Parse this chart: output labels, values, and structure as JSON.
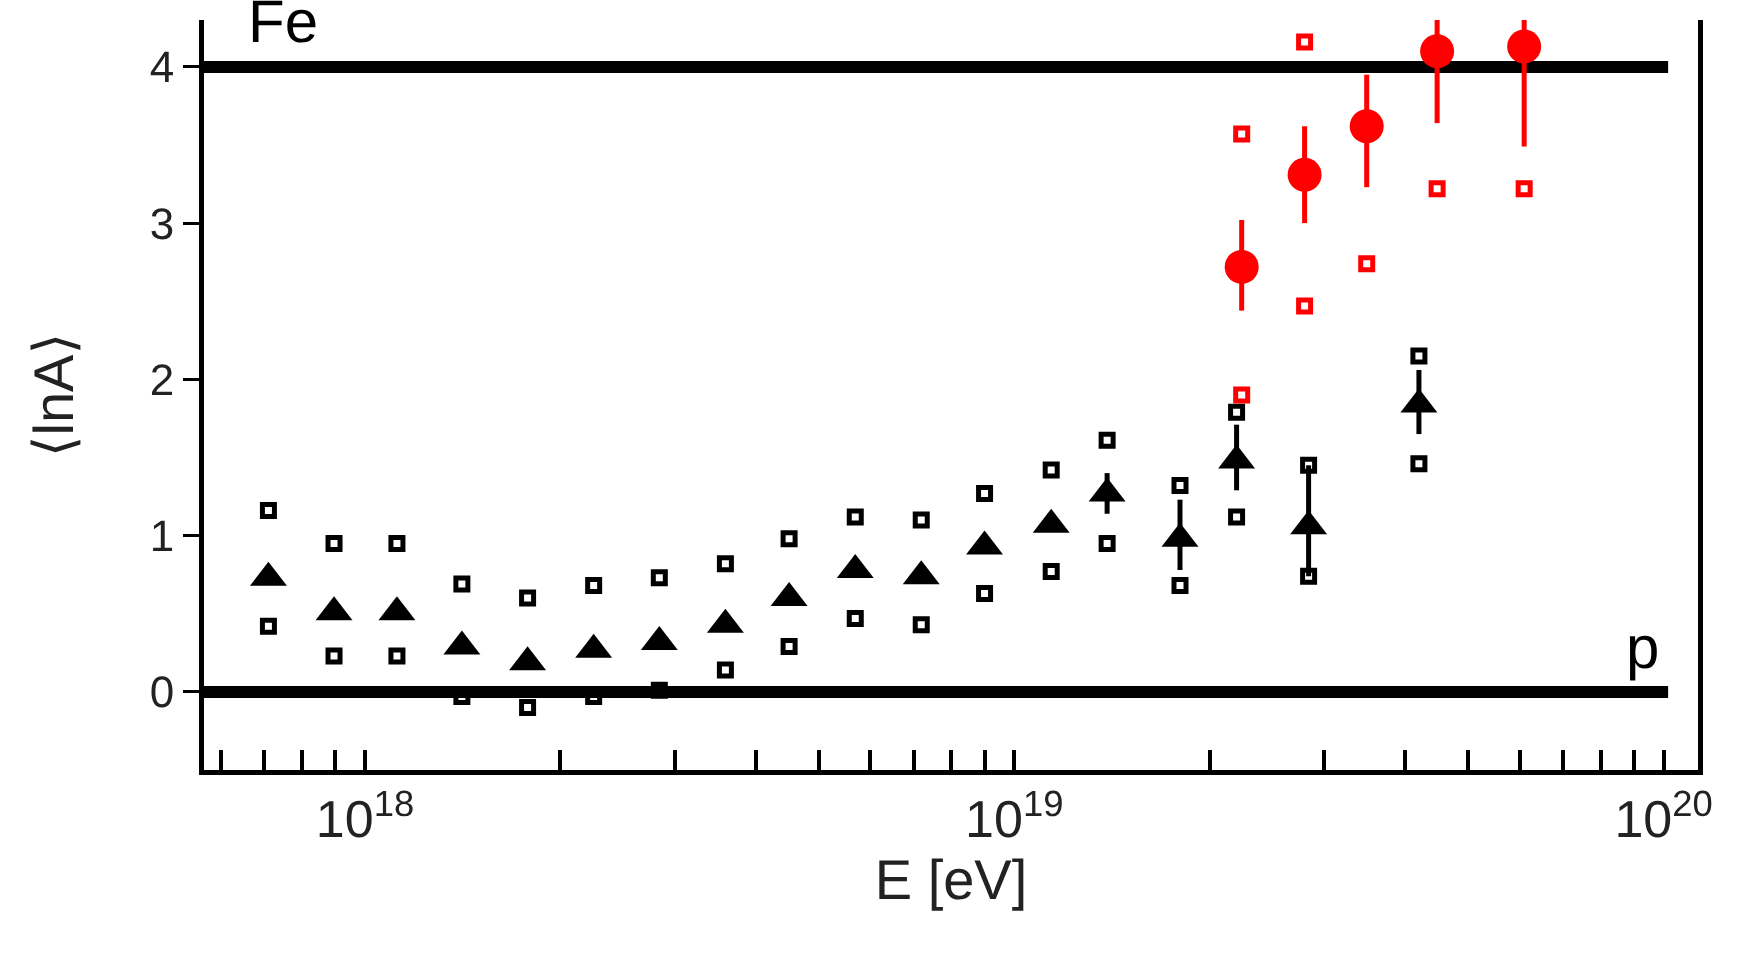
{
  "chart_data": {
    "type": "scatter",
    "xlabel": "E [eV]",
    "ylabel": "⟨lnA⟩",
    "log": "x",
    "grid": false,
    "xlim": [
      5.65e+17,
      1.13e+20
    ],
    "ylim": [
      -0.5,
      4.3
    ],
    "xticks": [
      {
        "value": 6e+17,
        "label": null
      },
      {
        "value": 7e+17,
        "label": null
      },
      {
        "value": 8e+17,
        "label": null
      },
      {
        "value": 9e+17,
        "label": null
      },
      {
        "value": 1e+18,
        "label": "10$^{18}$"
      },
      {
        "value": 2e+18,
        "label": null
      },
      {
        "value": 3e+18,
        "label": null
      },
      {
        "value": 4e+18,
        "label": null
      },
      {
        "value": 5e+18,
        "label": null
      },
      {
        "value": 6e+18,
        "label": null
      },
      {
        "value": 7e+18,
        "label": null
      },
      {
        "value": 8e+18,
        "label": null
      },
      {
        "value": 9e+18,
        "label": null
      },
      {
        "value": 1e+19,
        "label": "10$^{19}$"
      },
      {
        "value": 2e+19,
        "label": null
      },
      {
        "value": 3e+19,
        "label": null
      },
      {
        "value": 4e+19,
        "label": null
      },
      {
        "value": 5e+19,
        "label": null
      },
      {
        "value": 6e+19,
        "label": null
      },
      {
        "value": 7e+19,
        "label": null
      },
      {
        "value": 8e+19,
        "label": null
      },
      {
        "value": 9e+19,
        "label": null
      },
      {
        "value": 1e+20,
        "label": "10$^{20}$"
      }
    ],
    "yticks": [
      0,
      1,
      2,
      3,
      4
    ],
    "ref_lines": [
      {
        "axis": "y",
        "value": 0,
        "color": "#000000"
      },
      {
        "axis": "y",
        "value": 4,
        "color": "#000000"
      }
    ],
    "annotations": [
      {
        "text": "p",
        "x": 9.3e+19,
        "y": 0
      },
      {
        "text": "Fe",
        "x": 7.5e+17,
        "y": 4
      }
    ],
    "series": [
      {
        "marker": "triangle",
        "color": "#000000",
        "x": [
          7.1e+17,
          8.96e+17,
          1.12e+18,
          1.41e+18,
          1.78e+18,
          2.25e+18,
          2.84e+18,
          3.59e+18,
          4.5e+18,
          5.69e+18,
          7.19e+18,
          9e+18,
          1.14e+19,
          1.39e+19,
          1.8e+19,
          2.2e+19,
          2.84e+19,
          4.2e+19
        ],
        "values": [
          0.73,
          0.51,
          0.51,
          0.29,
          0.19,
          0.27,
          0.32,
          0.43,
          0.6,
          0.78,
          0.74,
          0.93,
          1.07,
          1.27,
          0.98,
          1.48,
          1.06,
          1.84
        ],
        "errors": [
          null,
          null,
          null,
          null,
          null,
          null,
          null,
          null,
          null,
          null,
          null,
          null,
          null,
          0.13,
          [
            0.78,
            1.23
          ],
          [
            1.29,
            1.71
          ],
          [
            0.74,
            1.45
          ],
          [
            1.65,
            2.06
          ]
        ]
      },
      {
        "marker": "square",
        "color": "#000000",
        "x": [
          7.1e+17,
          8.96e+17,
          1.12e+18,
          1.41e+18,
          1.78e+18,
          2.25e+18,
          2.84e+18,
          3.59e+18,
          4.5e+18,
          5.69e+18,
          7.19e+18,
          9e+18,
          1.14e+19,
          1.39e+19,
          1.8e+19,
          2.2e+19,
          2.84e+19,
          4.2e+19
        ],
        "values": [
          1.16,
          0.95,
          0.95,
          0.69,
          0.6,
          0.68,
          0.73,
          0.82,
          0.98,
          1.12,
          1.1,
          1.27,
          1.42,
          1.61,
          1.32,
          1.79,
          1.45,
          2.15
        ]
      },
      {
        "marker": "square",
        "color": "#000000",
        "x": [
          7.1e+17,
          8.96e+17,
          1.12e+18,
          1.41e+18,
          1.78e+18,
          2.25e+18,
          2.84e+18,
          3.59e+18,
          4.5e+18,
          5.69e+18,
          7.19e+18,
          9e+18,
          1.14e+19,
          1.39e+19,
          1.8e+19,
          2.2e+19,
          2.84e+19,
          4.2e+19
        ],
        "values": [
          0.42,
          0.23,
          0.23,
          -0.03,
          -0.1,
          -0.03,
          0.01,
          0.14,
          0.29,
          0.47,
          0.43,
          0.63,
          0.77,
          0.95,
          0.68,
          1.12,
          0.74,
          1.46
        ]
      },
      {
        "marker": "circle",
        "color": "#ff0000",
        "x": [
          2.24e+19,
          2.8e+19,
          3.49e+19,
          4.48e+19,
          6.1e+19
        ],
        "values": [
          2.72,
          3.31,
          3.62,
          4.1,
          4.13
        ],
        "errors": [
          [
            2.44,
            3.02
          ],
          [
            3.0,
            3.62
          ],
          [
            3.23,
            3.95
          ],
          [
            3.64,
            4.3
          ],
          [
            3.49,
            4.3
          ]
        ]
      },
      {
        "marker": "square",
        "color": "#ff0000",
        "x": [
          2.24e+19,
          2.8e+19
        ],
        "values": [
          3.57,
          4.16
        ]
      },
      {
        "marker": "square",
        "color": "#ff0000",
        "x": [
          2.24e+19,
          2.8e+19,
          3.49e+19,
          4.48e+19,
          6.1e+19
        ],
        "values": [
          1.9,
          2.47,
          2.74,
          3.22,
          3.22
        ]
      }
    ]
  }
}
